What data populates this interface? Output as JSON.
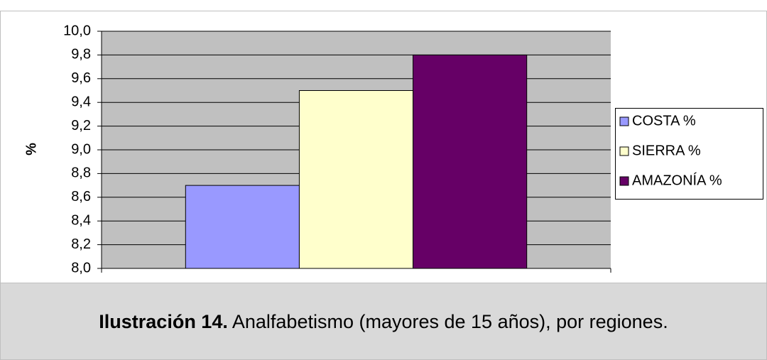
{
  "chart_data": {
    "type": "bar",
    "y_label": "%",
    "categories": [
      null
    ],
    "series": [
      {
        "name": "COSTA %",
        "color": "#9999ff",
        "values": [
          8.7
        ]
      },
      {
        "name": "SIERRA %",
        "color": "#ffffcc",
        "values": [
          9.5
        ]
      },
      {
        "name": "AMAZONÍA %",
        "color": "#660066",
        "values": [
          9.8
        ]
      }
    ],
    "ylim": [
      8.0,
      10.0
    ],
    "yticks": [
      {
        "value": 8.0,
        "label": "8,0"
      },
      {
        "value": 8.2,
        "label": "8,2"
      },
      {
        "value": 8.4,
        "label": "8,4"
      },
      {
        "value": 8.6,
        "label": "8,6"
      },
      {
        "value": 8.8,
        "label": "8,8"
      },
      {
        "value": 9.0,
        "label": "9,0"
      },
      {
        "value": 9.2,
        "label": "9,2"
      },
      {
        "value": 9.4,
        "label": "9,4"
      },
      {
        "value": 9.6,
        "label": "9,6"
      },
      {
        "value": 9.8,
        "label": "9,8"
      },
      {
        "value": 10.0,
        "label": "10,0"
      }
    ],
    "grid": true,
    "legend": "right",
    "plot_background": "#c0c0c0"
  },
  "caption": {
    "label": "Ilustración 14.",
    "text": "Analfabetismo (mayores de 15 años), por regiones."
  }
}
